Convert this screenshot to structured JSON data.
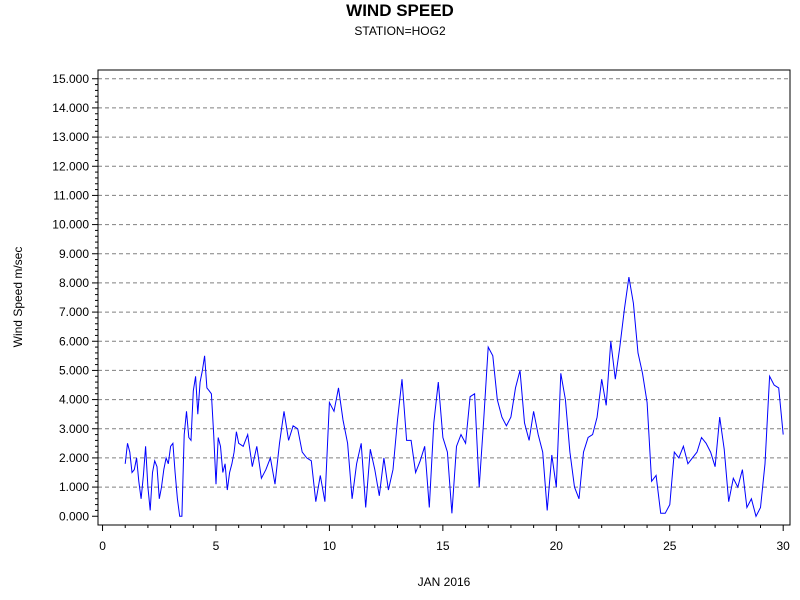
{
  "chart_data": {
    "type": "line",
    "title": "WIND SPEED",
    "subtitle": "STATION=HOG2",
    "xlabel": "JAN 2016",
    "ylabel": "Wind Speed m/sec",
    "xlim": [
      -0.2,
      30.3
    ],
    "ylim": [
      -0.3,
      15.3
    ],
    "x_ticks": [
      0,
      5,
      10,
      15,
      20,
      25,
      30
    ],
    "x_tick_labels": [
      "0",
      "5",
      "10",
      "15",
      "20",
      "25",
      "30"
    ],
    "y_ticks": [
      0,
      1,
      2,
      3,
      4,
      5,
      6,
      7,
      8,
      9,
      10,
      11,
      12,
      13,
      14,
      15
    ],
    "y_tick_labels": [
      "0.000",
      "1.000",
      "2.000",
      "3.000",
      "4.000",
      "5.000",
      "6.000",
      "7.000",
      "8.000",
      "9.000",
      "10.000",
      "11.000",
      "12.000",
      "13.000",
      "14.000",
      "15.000"
    ],
    "grid": "horizontal dashed",
    "line_color": "#0000ff",
    "series": [
      {
        "x": [
          1.0,
          1.1,
          1.2,
          1.3,
          1.4,
          1.5,
          1.6,
          1.7,
          1.8,
          1.9,
          2.0,
          2.1,
          2.2,
          2.3,
          2.4,
          2.5,
          2.6,
          2.7,
          2.8,
          2.9,
          3.0,
          3.1,
          3.2,
          3.3,
          3.4,
          3.5,
          3.6,
          3.7,
          3.8,
          3.9,
          4.0,
          4.1,
          4.2,
          4.3,
          4.4,
          4.5,
          4.6,
          4.7,
          4.8,
          4.9,
          5.0,
          5.1,
          5.2,
          5.3,
          5.4,
          5.5,
          5.6,
          5.7,
          5.8,
          5.9,
          6.0,
          6.2,
          6.4,
          6.6,
          6.8,
          7.0,
          7.2,
          7.4,
          7.6,
          7.8,
          8.0,
          8.2,
          8.4,
          8.6,
          8.8,
          9.0,
          9.2,
          9.4,
          9.6,
          9.8,
          10.0,
          10.2,
          10.4,
          10.6,
          10.8,
          11.0,
          11.2,
          11.4,
          11.6,
          11.8,
          12.0,
          12.2,
          12.4,
          12.6,
          12.8,
          13.0,
          13.2,
          13.4,
          13.6,
          13.8,
          14.0,
          14.2,
          14.4,
          14.6,
          14.8,
          15.0,
          15.2,
          15.4,
          15.6,
          15.8,
          16.0,
          16.2,
          16.4,
          16.6,
          16.8,
          17.0,
          17.2,
          17.4,
          17.6,
          17.8,
          18.0,
          18.2,
          18.4,
          18.6,
          18.8,
          19.0,
          19.2,
          19.4,
          19.6,
          19.8,
          20.0,
          20.2,
          20.4,
          20.6,
          20.8,
          21.0,
          21.2,
          21.4,
          21.6,
          21.8,
          22.0,
          22.2,
          22.4,
          22.6,
          22.8,
          23.0,
          23.2,
          23.4,
          23.6,
          23.8,
          24.0,
          24.2,
          24.4,
          24.6,
          24.8,
          25.0,
          25.2,
          25.4,
          25.6,
          25.8,
          26.0,
          26.2,
          26.4,
          26.6,
          26.8,
          27.0,
          27.2,
          27.4,
          27.6,
          27.8,
          28.0,
          28.2,
          28.4,
          28.6,
          28.8,
          29.0,
          29.2,
          29.4,
          29.6,
          29.8,
          30.0
        ],
        "y": [
          1.8,
          2.5,
          2.2,
          1.5,
          1.6,
          2.0,
          1.2,
          0.6,
          1.4,
          2.4,
          1.0,
          0.2,
          1.5,
          1.9,
          1.7,
          0.6,
          1.0,
          1.6,
          2.0,
          1.8,
          2.4,
          2.5,
          1.5,
          0.6,
          0.0,
          0.0,
          2.8,
          3.6,
          2.7,
          2.6,
          4.3,
          4.8,
          3.5,
          4.6,
          5.0,
          5.5,
          4.4,
          4.3,
          4.2,
          2.8,
          1.1,
          2.7,
          2.4,
          1.5,
          1.8,
          0.9,
          1.5,
          1.8,
          2.2,
          2.9,
          2.5,
          2.4,
          2.8,
          1.7,
          2.4,
          1.3,
          1.6,
          2.0,
          1.1,
          2.5,
          3.6,
          2.6,
          3.1,
          3.0,
          2.2,
          2.0,
          1.9,
          0.5,
          1.4,
          0.5,
          3.9,
          3.6,
          4.4,
          3.3,
          2.5,
          0.6,
          1.8,
          2.5,
          0.3,
          2.3,
          1.6,
          0.7,
          2.0,
          0.9,
          1.6,
          3.3,
          4.7,
          2.6,
          2.6,
          1.5,
          1.9,
          2.4,
          0.3,
          3.2,
          4.6,
          2.7,
          2.2,
          0.1,
          2.4,
          2.8,
          2.5,
          4.1,
          4.2,
          1.0,
          3.3,
          5.8,
          5.5,
          4.0,
          3.4,
          3.1,
          3.4,
          4.4,
          5.0,
          3.2,
          2.6,
          3.6,
          2.8,
          2.2,
          0.2,
          2.1,
          1.0,
          4.9,
          4.0,
          2.2,
          1.0,
          0.6,
          2.2,
          2.7,
          2.8,
          3.4,
          4.7,
          3.8,
          6.0,
          4.7,
          5.8,
          7.1,
          8.2,
          7.3,
          5.6,
          4.9,
          3.9,
          1.2,
          1.4,
          0.1,
          0.1,
          0.4,
          2.2,
          2.0,
          2.4,
          1.8,
          2.0,
          2.2,
          2.7,
          2.5,
          2.2,
          1.7,
          3.4,
          2.3,
          0.5,
          1.3,
          1.0,
          1.6,
          0.3,
          0.6,
          0.0,
          0.3,
          1.8,
          4.8,
          4.5,
          4.4,
          2.8
        ]
      }
    ]
  }
}
